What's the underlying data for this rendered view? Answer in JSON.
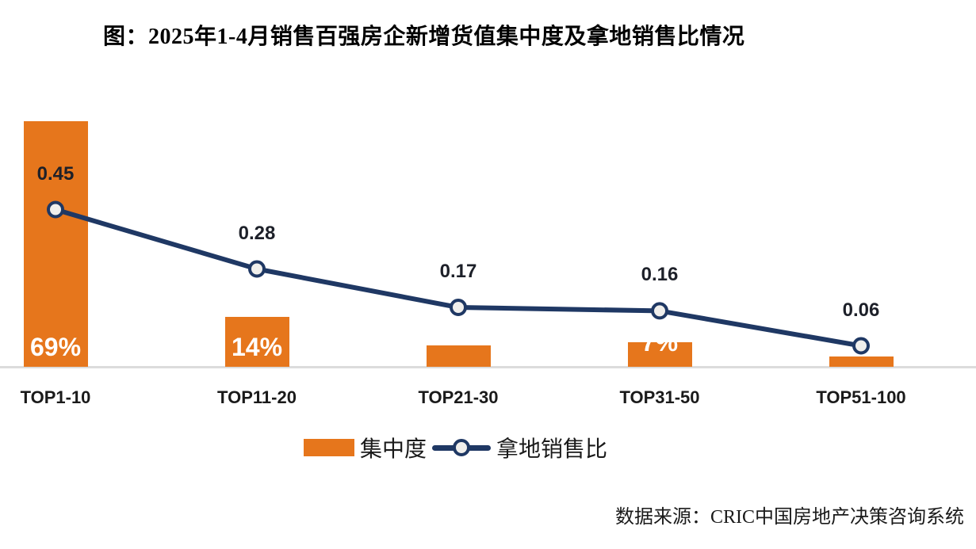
{
  "title": "图：2025年1-4月销售百强房企新增货值集中度及拿地销售比情况",
  "source_text": "数据来源：CRIC中国房地产决策咨询系统",
  "legend": {
    "bar_label": "集中度",
    "line_label": "拿地销售比"
  },
  "colors": {
    "bar": "#e6761c",
    "line": "#1f3864",
    "marker_fill": "#f0efec",
    "axis_line": "#dcdcdc",
    "bar_label_text": "#ffffff",
    "value_label_text": "#1d2029",
    "text": "#1a1a1a"
  },
  "chart_data": {
    "type": "bar",
    "subtype": "bar+line combo",
    "categories": [
      "TOP1-10",
      "TOP11-20",
      "TOP21-30",
      "TOP31-50",
      "TOP51-100"
    ],
    "series": [
      {
        "name": "集中度",
        "type": "bar",
        "unit": "%",
        "values": [
          69,
          14,
          6,
          7,
          3
        ],
        "labels_visible": [
          "69%",
          "14%",
          "",
          "7%",
          ""
        ]
      },
      {
        "name": "拿地销售比",
        "type": "line",
        "values": [
          0.45,
          0.28,
          0.17,
          0.16,
          0.06
        ],
        "labels": [
          "0.45",
          "0.28",
          "0.17",
          "0.16",
          "0.06"
        ]
      }
    ],
    "title": "图：2025年1-4月销售百强房企新增货值集中度及拿地销售比情况",
    "xlabel": "",
    "ylabel": "",
    "grid": false,
    "axes_ticks_visible": false,
    "legend_position": "bottom-center",
    "bar_axis_range_pct": [
      0,
      100
    ],
    "line_axis_range": [
      0,
      1.05
    ]
  }
}
